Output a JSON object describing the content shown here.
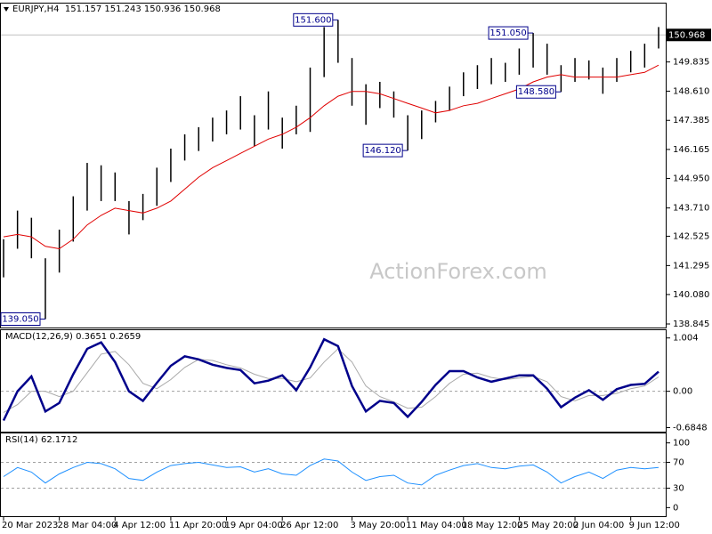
{
  "chart_data": [
    {
      "type": "range",
      "title": "EURJPY,H4  151.157 151.243 150.936 150.968",
      "categories": [
        "20 Mar 2023",
        null,
        null,
        null,
        "28 Mar 04:00",
        null,
        null,
        null,
        "4 Apr 12:00",
        null,
        null,
        null,
        "11 Apr 20:00",
        null,
        null,
        null,
        "19 Apr 04:00",
        null,
        null,
        null,
        "26 Apr 12:00",
        null,
        null,
        null,
        null,
        "3 May 20:00",
        null,
        null,
        null,
        "11 May 04:00",
        null,
        null,
        null,
        "18 May 12:00",
        null,
        null,
        null,
        "25 May 20:00",
        null,
        null,
        null,
        "2 Jun 04:00",
        null,
        null,
        null,
        "9 Jun 12:00",
        null,
        null
      ],
      "high": [
        142.4,
        143.6,
        143.3,
        141.6,
        142.8,
        144.2,
        145.6,
        145.5,
        145.2,
        144.0,
        144.3,
        145.4,
        146.2,
        146.8,
        147.1,
        147.5,
        147.8,
        148.4,
        147.6,
        148.6,
        147.5,
        148.0,
        149.6,
        151.3,
        151.6,
        150.0,
        148.9,
        149.0,
        148.6,
        147.6,
        147.8,
        148.2,
        148.8,
        149.4,
        149.7,
        150.0,
        149.8,
        150.4,
        151.05,
        150.6,
        149.7,
        150.0,
        149.9,
        149.6,
        150.0,
        150.3,
        150.6,
        151.3
      ],
      "low": [
        140.8,
        142.0,
        141.6,
        139.05,
        141.0,
        142.3,
        143.6,
        144.0,
        144.0,
        142.6,
        143.2,
        143.8,
        144.8,
        145.7,
        146.1,
        146.5,
        146.8,
        147.0,
        146.3,
        147.0,
        146.2,
        146.8,
        146.9,
        149.2,
        149.8,
        148.0,
        147.2,
        147.9,
        147.5,
        146.12,
        146.6,
        147.3,
        147.8,
        148.4,
        148.7,
        148.9,
        149.0,
        149.3,
        149.6,
        149.3,
        148.58,
        149.0,
        149.1,
        148.5,
        149.0,
        149.4,
        149.6,
        150.4
      ],
      "bar_color": "#000000",
      "ma": [
        142.5,
        142.6,
        142.5,
        142.1,
        142.0,
        142.4,
        143.0,
        143.4,
        143.7,
        143.6,
        143.5,
        143.7,
        144.0,
        144.5,
        145.0,
        145.4,
        145.7,
        146.0,
        146.3,
        146.6,
        146.8,
        147.1,
        147.5,
        148.0,
        148.4,
        148.6,
        148.6,
        148.5,
        148.3,
        148.1,
        147.9,
        147.7,
        147.8,
        148.0,
        148.1,
        148.3,
        148.5,
        148.7,
        149.0,
        149.2,
        149.3,
        149.2,
        149.2,
        149.2,
        149.2,
        149.3,
        149.4,
        149.7
      ],
      "ma_color": "#e00000",
      "last_price": 150.968,
      "annotations": [
        {
          "value": 151.6,
          "label": "151.600"
        },
        {
          "value": 151.05,
          "label": "151.050"
        },
        {
          "value": 148.58,
          "label": "148.580"
        },
        {
          "value": 146.12,
          "label": "146.120"
        },
        {
          "value": 139.05,
          "label": "139.050"
        }
      ],
      "watermark": "ActionForex.com",
      "ylim": [
        138.77,
        152.21
      ],
      "yticks": [
        138.845,
        {
          "value": 140.08,
          "label": "140.080"
        },
        141.295,
        142.525,
        {
          "value": 143.71,
          "label": "143.710"
        },
        {
          "value": 144.95,
          "label": "144.950"
        },
        146.165,
        147.385,
        {
          "value": 148.61,
          "label": "148.610"
        },
        149.835
      ]
    },
    {
      "type": "line",
      "title": "MACD(12,26,9) 0.3651 0.2659",
      "series": [
        {
          "color": "#00008b",
          "values": [
            -0.55,
            0.0,
            0.28,
            -0.38,
            -0.22,
            0.32,
            0.8,
            0.92,
            0.55,
            0.0,
            -0.18,
            0.16,
            0.48,
            0.66,
            0.6,
            0.5,
            0.44,
            0.4,
            0.15,
            0.2,
            0.3,
            0.02,
            0.45,
            0.98,
            0.85,
            0.1,
            -0.38,
            -0.18,
            -0.22,
            -0.48,
            -0.2,
            0.12,
            0.38,
            0.38,
            0.26,
            0.18,
            0.24,
            0.3,
            0.3,
            0.05,
            -0.3,
            -0.12,
            0.02,
            -0.16,
            0.04,
            0.12,
            0.14,
            0.37
          ]
        },
        {
          "color": "#a9a9a9",
          "values": [
            -0.4,
            -0.25,
            0.0,
            0.0,
            -0.1,
            0.0,
            0.35,
            0.7,
            0.75,
            0.5,
            0.15,
            0.05,
            0.22,
            0.45,
            0.6,
            0.58,
            0.5,
            0.44,
            0.32,
            0.24,
            0.24,
            0.18,
            0.25,
            0.55,
            0.8,
            0.55,
            0.1,
            -0.1,
            -0.2,
            -0.32,
            -0.3,
            -0.1,
            0.15,
            0.32,
            0.34,
            0.26,
            0.22,
            0.25,
            0.28,
            0.18,
            -0.1,
            -0.18,
            -0.08,
            -0.08,
            -0.04,
            0.05,
            0.1,
            0.27
          ]
        }
      ],
      "ylim": [
        -0.71,
        1.1
      ],
      "yticks": [
        1.004,
        {
          "value": 0,
          "label": "0.00"
        },
        -0.6848
      ],
      "levels": [
        0
      ]
    },
    {
      "type": "line",
      "title": "RSI(14) 62.1712",
      "series": [
        {
          "color": "#1e90ff",
          "values": [
            48,
            62,
            55,
            38,
            52,
            62,
            70,
            68,
            60,
            45,
            42,
            55,
            65,
            68,
            70,
            66,
            62,
            63,
            55,
            60,
            52,
            50,
            65,
            75,
            72,
            55,
            42,
            48,
            50,
            38,
            35,
            50,
            58,
            65,
            68,
            62,
            60,
            64,
            66,
            55,
            38,
            48,
            55,
            45,
            58,
            62,
            60,
            62
          ]
        }
      ],
      "ylim": [
        -10.5,
        110.5
      ],
      "yticks": [
        100,
        70,
        30,
        0
      ],
      "levels": [
        70,
        30
      ]
    }
  ]
}
